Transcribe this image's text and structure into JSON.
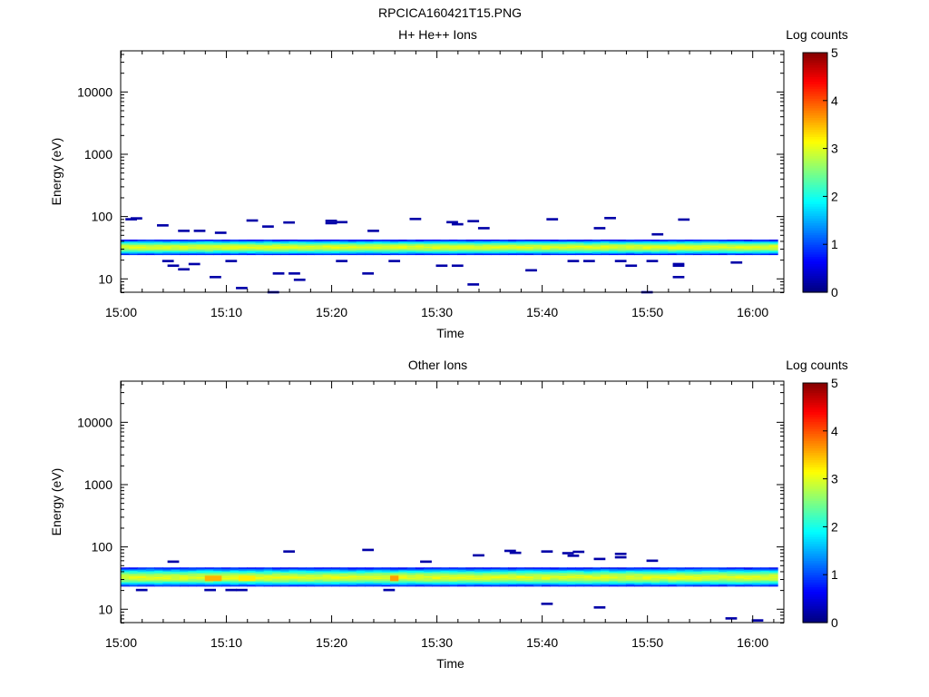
{
  "figure_title": "RPCICA160421T15.PNG",
  "chart_data": [
    {
      "type": "heatmap",
      "title": "H+ He++ Ions",
      "xlabel": "Time",
      "ylabel": "Energy (eV)",
      "x_ticks": [
        "15:00",
        "15:10",
        "15:20",
        "15:30",
        "15:40",
        "15:50",
        "16:00"
      ],
      "x_range_minutes": [
        0,
        63
      ],
      "y_scale": "log",
      "y_ticks": [
        "10",
        "100",
        "1000",
        "10000"
      ],
      "y_range": [
        6,
        45000
      ],
      "colorbar": {
        "label": "Log counts",
        "ticks": [
          "0",
          "1",
          "2",
          "3",
          "4",
          "5"
        ],
        "range": [
          0,
          5
        ],
        "colormap": "jet"
      },
      "band": {
        "energy_range_eV": [
          24,
          42
        ],
        "peak_energy_eV": 32,
        "peak_log_counts": 3.0,
        "span_minutes": [
          0,
          62.3
        ]
      },
      "hot_spots": [],
      "sparse_pixels_log_counts_approx": 0.2,
      "sparse_pixels": [
        [
          1,
          89
        ],
        [
          1.5,
          92
        ],
        [
          4,
          71
        ],
        [
          6,
          58
        ],
        [
          7.5,
          58
        ],
        [
          9.5,
          54
        ],
        [
          12.5,
          85
        ],
        [
          14,
          68
        ],
        [
          16,
          79
        ],
        [
          20,
          84
        ],
        [
          20,
          77
        ],
        [
          21,
          80
        ],
        [
          24,
          58
        ],
        [
          28,
          90
        ],
        [
          31.5,
          80
        ],
        [
          33.5,
          83
        ],
        [
          34.5,
          64
        ],
        [
          32,
          74
        ],
        [
          41,
          89
        ],
        [
          45.5,
          64
        ],
        [
          46.5,
          93
        ],
        [
          51,
          51
        ],
        [
          53.5,
          88
        ],
        [
          4.5,
          19
        ],
        [
          5,
          16
        ],
        [
          6,
          14
        ],
        [
          7,
          17
        ],
        [
          9,
          10.5
        ],
        [
          10.5,
          19
        ],
        [
          11.5,
          7
        ],
        [
          14.5,
          6
        ],
        [
          15,
          12
        ],
        [
          16.5,
          12
        ],
        [
          17,
          9.5
        ],
        [
          21,
          19
        ],
        [
          23.5,
          12
        ],
        [
          26,
          19
        ],
        [
          30.5,
          16
        ],
        [
          32,
          16
        ],
        [
          33.5,
          8
        ],
        [
          39,
          13.5
        ],
        [
          43,
          19
        ],
        [
          44.5,
          19
        ],
        [
          47.5,
          19
        ],
        [
          48.5,
          16
        ],
        [
          50,
          6
        ],
        [
          50.5,
          19
        ],
        [
          53,
          17
        ],
        [
          53,
          16
        ],
        [
          53,
          10.5
        ],
        [
          58.5,
          18
        ]
      ]
    },
    {
      "type": "heatmap",
      "title": "Other Ions",
      "xlabel": "Time",
      "ylabel": "Energy (eV)",
      "x_ticks": [
        "15:00",
        "15:10",
        "15:20",
        "15:30",
        "15:40",
        "15:50",
        "16:00"
      ],
      "x_range_minutes": [
        0,
        63
      ],
      "y_scale": "log",
      "y_ticks": [
        "10",
        "100",
        "1000",
        "10000"
      ],
      "y_range": [
        6,
        45000
      ],
      "colorbar": {
        "label": "Log counts",
        "ticks": [
          "0",
          "1",
          "2",
          "3",
          "4",
          "5"
        ],
        "range": [
          0,
          5
        ],
        "colormap": "jet"
      },
      "band": {
        "energy_range_eV": [
          23,
          46
        ],
        "peak_energy_eV": 32,
        "peak_log_counts": 3.0,
        "span_minutes": [
          0,
          62.3
        ]
      },
      "hot_spots": [
        [
          8.3,
          31,
          3.5
        ],
        [
          11.5,
          31,
          3.2
        ],
        [
          25.5,
          31,
          3.6
        ]
      ],
      "sparse_pixels_log_counts_approx": 0.2,
      "sparse_pixels": [
        [
          5,
          57
        ],
        [
          16,
          83
        ],
        [
          23.5,
          88
        ],
        [
          29,
          57
        ],
        [
          34,
          72
        ],
        [
          37,
          85
        ],
        [
          37.5,
          79
        ],
        [
          40.5,
          83
        ],
        [
          42.5,
          78
        ],
        [
          43.5,
          82
        ],
        [
          43,
          71
        ],
        [
          45.5,
          63
        ],
        [
          47.5,
          76
        ],
        [
          47.5,
          67
        ],
        [
          50.5,
          59
        ],
        [
          2,
          20
        ],
        [
          8.5,
          20
        ],
        [
          10.5,
          20
        ],
        [
          11.5,
          20
        ],
        [
          25.5,
          20
        ],
        [
          40.5,
          12
        ],
        [
          45.5,
          10.5
        ],
        [
          58,
          7
        ],
        [
          60.5,
          6.5
        ]
      ]
    }
  ]
}
